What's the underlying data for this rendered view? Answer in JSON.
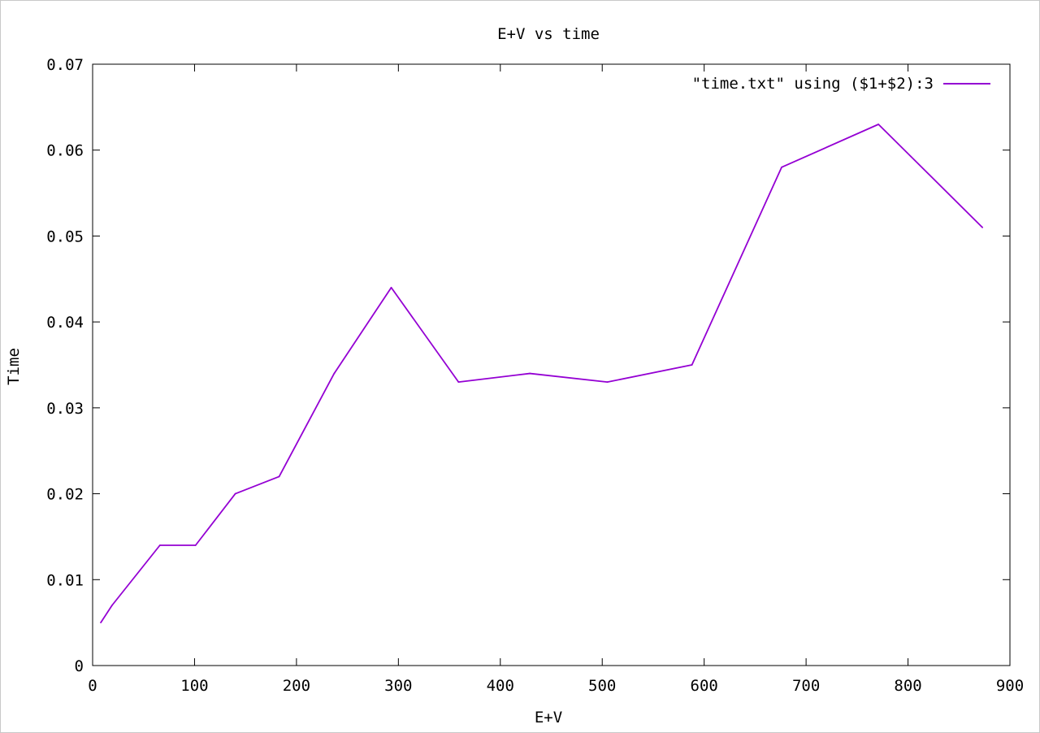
{
  "chart_data": {
    "type": "line",
    "title": "E+V vs time",
    "xlabel": "E+V",
    "ylabel": "Time",
    "xlim": [
      0,
      900
    ],
    "ylim": [
      0,
      0.07
    ],
    "x_ticks": [
      "0",
      "100",
      "200",
      "300",
      "400",
      "500",
      "600",
      "700",
      "800",
      "900"
    ],
    "y_ticks": [
      "0",
      "0.01",
      "0.02",
      "0.03",
      "0.04",
      "0.05",
      "0.06",
      "0.07"
    ],
    "grid": false,
    "legend_position": "top-right",
    "series": [
      {
        "name": "\"time.txt\" using ($1+$2):3",
        "color": "#9400d3",
        "points": [
          {
            "x": 8,
            "y": 0.005
          },
          {
            "x": 19,
            "y": 0.007
          },
          {
            "x": 66,
            "y": 0.014
          },
          {
            "x": 101,
            "y": 0.014
          },
          {
            "x": 140,
            "y": 0.02
          },
          {
            "x": 183,
            "y": 0.022
          },
          {
            "x": 237,
            "y": 0.034
          },
          {
            "x": 293,
            "y": 0.044
          },
          {
            "x": 359,
            "y": 0.033
          },
          {
            "x": 429,
            "y": 0.034
          },
          {
            "x": 505,
            "y": 0.033
          },
          {
            "x": 588,
            "y": 0.035
          },
          {
            "x": 676,
            "y": 0.058
          },
          {
            "x": 771,
            "y": 0.063
          },
          {
            "x": 873,
            "y": 0.051
          }
        ]
      }
    ]
  }
}
